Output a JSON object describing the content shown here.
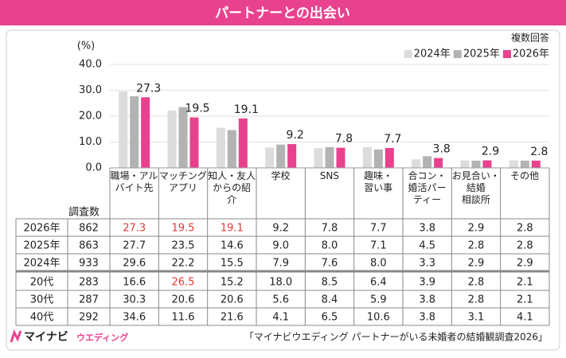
{
  "header": {
    "title": "パートナーとの出会い"
  },
  "chart_data": {
    "type": "bar",
    "y_label": "(%)",
    "note": "複数回答",
    "categories": [
      "職場・アル\nバイト先",
      "マッチング\nアプリ",
      "知人・友人\nからの紹\n介",
      "学校",
      "SNS",
      "趣味・\n習い事",
      "合コン・\n婚活パー\nティー",
      "お見合い・\n結婚\n相談所",
      "その他"
    ],
    "series": [
      {
        "name": "2024年",
        "color": "#dcdcdc",
        "values": [
          29.6,
          22.2,
          15.5,
          7.9,
          7.6,
          8.0,
          3.3,
          2.9,
          2.9
        ]
      },
      {
        "name": "2025年",
        "color": "#b3b3b3",
        "values": [
          27.7,
          23.5,
          14.6,
          9.0,
          8.0,
          7.1,
          4.5,
          2.8,
          2.8
        ]
      },
      {
        "name": "2026年",
        "color": "#e8428e",
        "values": [
          27.3,
          19.5,
          19.1,
          9.2,
          7.8,
          7.7,
          3.8,
          2.9,
          2.8
        ],
        "show_value_labels": true
      }
    ],
    "ylim": [
      0,
      40
    ],
    "yticks": [
      {
        "value": 0,
        "label": "0.0"
      },
      {
        "value": 10,
        "label": "10.0"
      },
      {
        "value": 20,
        "label": "20.0"
      },
      {
        "value": 30,
        "label": "30.0"
      },
      {
        "value": 40,
        "label": "40.0"
      }
    ],
    "grid": true
  },
  "table": {
    "count_header": "調査数",
    "highlight_color": "#e53935",
    "rows": [
      {
        "label": "2026年",
        "count": 862,
        "values": [
          "27.3",
          "19.5",
          "19.1",
          "9.2",
          "7.8",
          "7.7",
          "3.8",
          "2.9",
          "2.8"
        ],
        "highlight": [
          0,
          1,
          2
        ]
      },
      {
        "label": "2025年",
        "count": 863,
        "values": [
          "27.7",
          "23.5",
          "14.6",
          "9.0",
          "8.0",
          "7.1",
          "4.5",
          "2.8",
          "2.8"
        ],
        "highlight": []
      },
      {
        "label": "2024年",
        "count": 933,
        "values": [
          "29.6",
          "22.2",
          "15.5",
          "7.9",
          "7.6",
          "8.0",
          "3.3",
          "2.9",
          "2.9"
        ],
        "highlight": []
      },
      {
        "label": "20代",
        "count": 283,
        "values": [
          "16.6",
          "26.5",
          "15.2",
          "18.0",
          "8.5",
          "6.4",
          "3.9",
          "2.8",
          "2.1"
        ],
        "highlight": [
          1
        ]
      },
      {
        "label": "30代",
        "count": 287,
        "values": [
          "30.3",
          "20.6",
          "20.6",
          "5.6",
          "8.4",
          "5.9",
          "3.8",
          "2.8",
          "2.1"
        ],
        "highlight": []
      },
      {
        "label": "40代",
        "count": 292,
        "values": [
          "34.6",
          "11.6",
          "21.6",
          "4.1",
          "6.5",
          "10.6",
          "3.8",
          "3.1",
          "4.1"
        ],
        "highlight": []
      }
    ]
  },
  "footer": {
    "logo_main": "マイナビ",
    "logo_sub": "ウエディング",
    "source": "「マイナビウエディング パートナーがいる未婚者の結婚観調査2026」"
  }
}
